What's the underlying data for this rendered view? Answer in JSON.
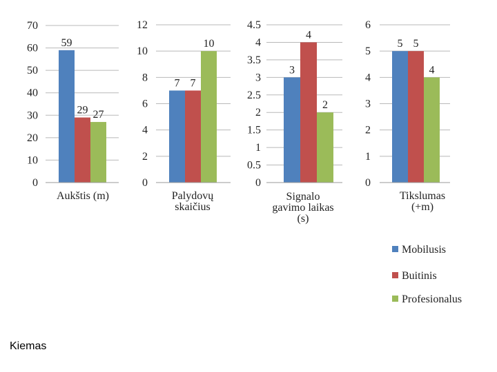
{
  "caption": "Kiemas",
  "chart_data": [
    {
      "type": "bar",
      "categories": [
        "Aukštis  (m)"
      ],
      "xlabel_lines": [
        "Aukštis  (m)"
      ],
      "yticks": [
        0,
        10,
        20,
        30,
        40,
        50,
        60,
        70
      ],
      "ylim": [
        0,
        70
      ],
      "series": [
        {
          "name": "Mobilusis",
          "values": [
            59
          ]
        },
        {
          "name": "Buitinis",
          "values": [
            29
          ]
        },
        {
          "name": "Profesionalus",
          "values": [
            27
          ]
        }
      ],
      "data_labels": [
        "59",
        "29",
        "27"
      ]
    },
    {
      "type": "bar",
      "categories": [
        "Palydovų skaičius"
      ],
      "xlabel_lines": [
        "Palydovų",
        "skaičius"
      ],
      "yticks": [
        0,
        2,
        4,
        6,
        8,
        10,
        12
      ],
      "ylim": [
        0,
        12
      ],
      "series": [
        {
          "name": "Mobilusis",
          "values": [
            7
          ]
        },
        {
          "name": "Buitinis",
          "values": [
            7
          ]
        },
        {
          "name": "Profesionalus",
          "values": [
            10
          ]
        }
      ],
      "data_labels": [
        "7",
        "7",
        "10"
      ]
    },
    {
      "type": "bar",
      "categories": [
        "Signalo gavimo laikas (s)"
      ],
      "xlabel_lines": [
        "Signalo",
        "gavimo laikas",
        "(s)"
      ],
      "yticks": [
        "0",
        "0.5",
        "1",
        "1.5",
        "2",
        "2.5",
        "3",
        "3.5",
        "4",
        "4.5"
      ],
      "ylim": [
        0,
        4.5
      ],
      "series": [
        {
          "name": "Mobilusis",
          "values": [
            3
          ]
        },
        {
          "name": "Buitinis",
          "values": [
            4
          ]
        },
        {
          "name": "Profesionalus",
          "values": [
            2
          ]
        }
      ],
      "data_labels": [
        "3",
        "4",
        "2"
      ]
    },
    {
      "type": "bar",
      "categories": [
        "Tikslumas (+m)"
      ],
      "xlabel_lines": [
        "Tikslumas",
        "(+m)"
      ],
      "yticks": [
        0,
        1,
        2,
        3,
        4,
        5,
        6
      ],
      "ylim": [
        0,
        6
      ],
      "series": [
        {
          "name": "Mobilusis",
          "values": [
            5
          ]
        },
        {
          "name": "Buitinis",
          "values": [
            5
          ]
        },
        {
          "name": "Profesionalus",
          "values": [
            4
          ]
        }
      ],
      "data_labels": [
        "5",
        "5",
        "4"
      ]
    }
  ],
  "legend": [
    {
      "name": "Mobilusis",
      "color": "#4f81bd"
    },
    {
      "name": "Buitinis",
      "color": "#c0504d"
    },
    {
      "name": "Profesionalus",
      "color": "#9bbb59"
    }
  ]
}
